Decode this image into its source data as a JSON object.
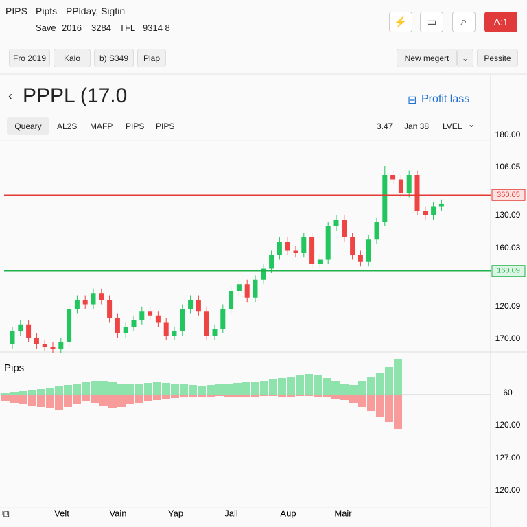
{
  "header": {
    "items": [
      "PIPS",
      "Pipts",
      "PPlday, Sigtin"
    ],
    "stats": [
      "Save",
      "2016",
      "3284",
      "TFL",
      "9314 8"
    ],
    "badge": "A:1"
  },
  "toolbar": {
    "left": [
      "Fro 2019",
      "Kalo",
      "b) S349",
      "Plap"
    ],
    "dropdown": "New megert",
    "button": "Pessite"
  },
  "symbol": {
    "title": "PPPL (17.0",
    "link": "Profit lass"
  },
  "tabs": [
    "Queary",
    "AL2S",
    "MAFP",
    "PIPS",
    "PIPS"
  ],
  "info": [
    "3.47",
    "Jan 38",
    "LVEL"
  ],
  "chart": {
    "type": "candlestick",
    "ylim": [
      0,
      100
    ],
    "up_color": "#22c55e",
    "down_color": "#ef4444",
    "open": [
      4,
      10,
      13,
      7,
      4,
      3,
      2,
      5,
      20,
      24,
      22,
      27,
      24,
      16,
      9,
      12,
      15,
      19,
      17,
      14,
      8,
      10,
      20,
      24,
      19,
      8,
      11,
      20,
      28,
      31,
      25,
      33,
      38,
      44,
      50,
      46,
      45,
      52,
      40,
      42,
      57,
      60,
      52,
      44,
      41,
      51,
      59,
      80,
      78,
      72,
      80,
      64,
      62,
      66
    ],
    "high": [
      12,
      15,
      15,
      9,
      6,
      5,
      7,
      22,
      26,
      26,
      29,
      29,
      26,
      18,
      14,
      17,
      21,
      21,
      19,
      16,
      12,
      22,
      26,
      26,
      21,
      13,
      22,
      30,
      33,
      33,
      35,
      40,
      46,
      52,
      52,
      48,
      54,
      54,
      44,
      59,
      62,
      62,
      54,
      46,
      53,
      61,
      84,
      82,
      80,
      82,
      82,
      66,
      68,
      69
    ],
    "low": [
      2,
      8,
      5,
      2,
      1,
      0,
      0,
      3,
      18,
      20,
      20,
      22,
      14,
      7,
      7,
      10,
      13,
      15,
      12,
      6,
      6,
      8,
      18,
      17,
      6,
      6,
      9,
      18,
      26,
      23,
      23,
      31,
      36,
      42,
      44,
      43,
      43,
      38,
      38,
      40,
      55,
      50,
      42,
      39,
      39,
      49,
      57,
      76,
      70,
      70,
      62,
      60,
      60,
      64
    ],
    "close": [
      10,
      13,
      7,
      4,
      3,
      2,
      5,
      20,
      24,
      22,
      27,
      24,
      16,
      9,
      12,
      15,
      19,
      17,
      14,
      8,
      10,
      20,
      24,
      19,
      8,
      11,
      20,
      28,
      31,
      25,
      33,
      38,
      44,
      50,
      46,
      45,
      52,
      40,
      42,
      57,
      60,
      52,
      44,
      41,
      51,
      59,
      80,
      78,
      72,
      80,
      64,
      62,
      66,
      67
    ],
    "price_labels": [
      "180.00",
      "106.05",
      "130.09",
      "160.03",
      "120.09",
      "170.00"
    ],
    "levels": [
      {
        "value": 71,
        "tag": "360.05",
        "color": "#e53935"
      },
      {
        "value": 37,
        "tag": "160.09",
        "color": "#1fb14a"
      }
    ]
  },
  "oscillator": {
    "type": "bar",
    "title": "Pips",
    "ylim": [
      -145,
      55
    ],
    "series": [
      {
        "color": "#8ee3ad",
        "values": [
          3,
          4,
          5,
          6,
          8,
          10,
          12,
          14,
          16,
          18,
          20,
          20,
          18,
          16,
          15,
          16,
          17,
          18,
          17,
          16,
          15,
          14,
          13,
          14,
          15,
          16,
          17,
          18,
          19,
          20,
          22,
          24,
          26,
          28,
          30,
          28,
          24,
          20,
          16,
          14,
          20,
          26,
          32,
          40,
          52
        ]
      },
      {
        "color": "#f79b9b",
        "values": [
          -10,
          -12,
          -14,
          -16,
          -18,
          -20,
          -22,
          -18,
          -14,
          -10,
          -12,
          -16,
          -20,
          -18,
          -14,
          -12,
          -10,
          -8,
          -6,
          -5,
          -4,
          -4,
          -3,
          -3,
          -2,
          -3,
          -3,
          -4,
          -3,
          -2,
          -2,
          -3,
          -3,
          -2,
          -2,
          -3,
          -4,
          -6,
          -8,
          -12,
          -18,
          -24,
          -32,
          -40,
          -50
        ]
      }
    ],
    "labels": [
      "60",
      "120.00",
      "127.00",
      "120.00"
    ]
  },
  "x_labels": [
    "Velt",
    "Vain",
    "Yap",
    "Jall",
    "Aup",
    "Mair"
  ]
}
